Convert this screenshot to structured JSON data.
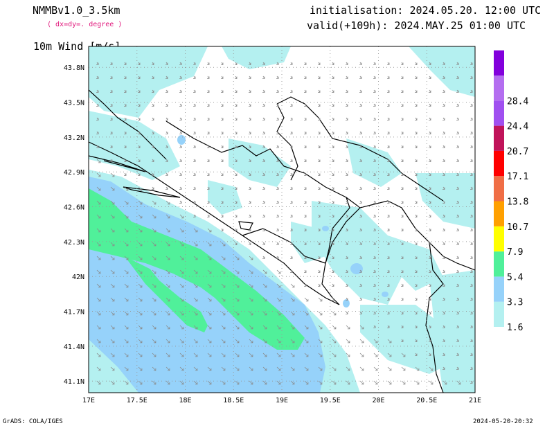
{
  "header": {
    "model": "NMMBv1.0_3.5km",
    "resolution": "( dx=dy=. degree )",
    "initialisation": "initialisation: 2024.05.20. 12:00 UTC",
    "valid": "valid(+109h): 2024.MAY.25 01:00 UTC",
    "variable": "10m Wind [m/s]"
  },
  "footer": {
    "left": "GrADS: COLA/IGES",
    "right": "2024-05-20-20:32"
  },
  "map": {
    "lat_labels": [
      "43.8N",
      "43.5N",
      "43.2N",
      "42.9N",
      "42.6N",
      "42.3N",
      "42N",
      "41.7N",
      "41.4N",
      "41.1N"
    ],
    "lon_labels": [
      "17E",
      "17.5E",
      "18E",
      "18.5E",
      "19E",
      "19.5E",
      "20E",
      "20.5E",
      "21E"
    ],
    "lat_values": [
      43.8,
      43.5,
      43.2,
      42.9,
      42.6,
      42.3,
      42.0,
      41.7,
      41.4,
      41.1
    ],
    "lon_values": [
      17.0,
      17.5,
      18.0,
      18.5,
      19.0,
      19.5,
      20.0,
      20.5,
      21.0
    ]
  },
  "colorbar": {
    "levels": [
      "1.6",
      "3.3",
      "5.4",
      "7.9",
      "10.7",
      "13.8",
      "17.1",
      "20.7",
      "24.4",
      "28.4"
    ],
    "colors": [
      "#b4f0f0",
      "#96d2fa",
      "#50f09a",
      "#ffff00",
      "#ffa000",
      "#f06e46",
      "#ff0000",
      "#c0145a",
      "#a050f0",
      "#b46ef0",
      "#8200dc"
    ]
  }
}
